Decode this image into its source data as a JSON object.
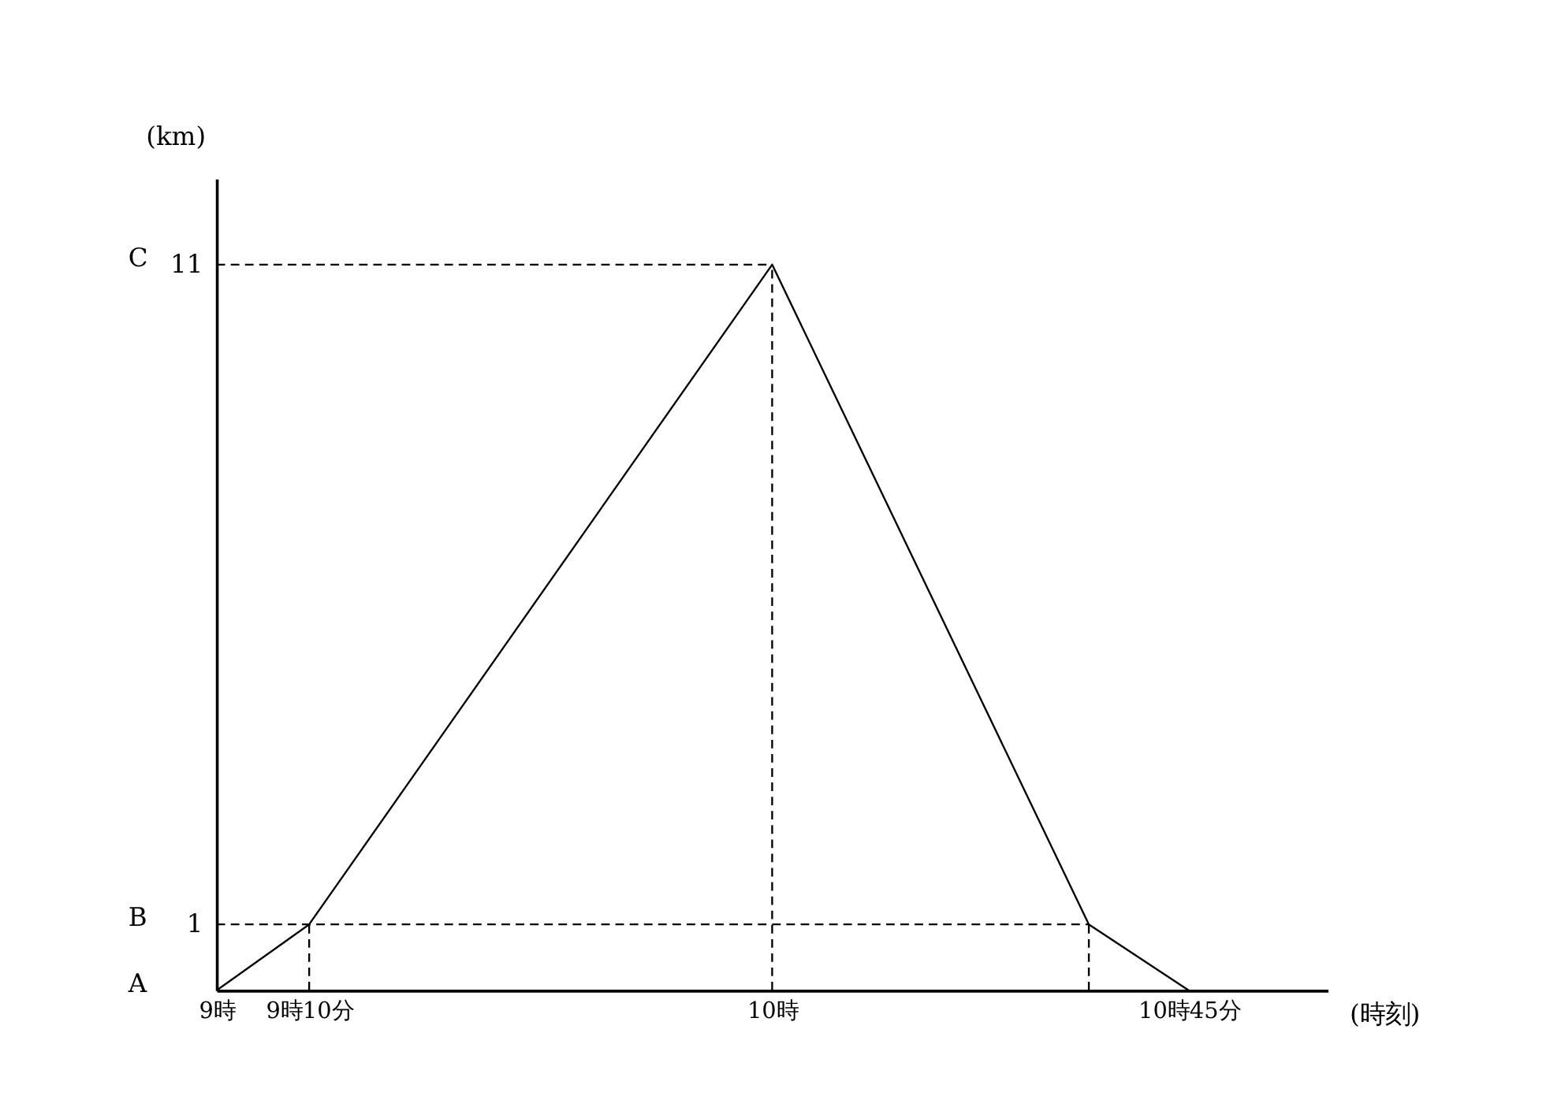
{
  "chart_data": {
    "type": "line",
    "xlabel": "(時刻)",
    "ylabel": "(km)",
    "xlim": [
      9,
      11
    ],
    "xticks": [
      {
        "value": 9,
        "label": "9時"
      },
      {
        "value": 9.1667,
        "label": "9時10分"
      },
      {
        "value": 10,
        "label": "10時"
      },
      {
        "value": 10.75,
        "label": "10時45分"
      }
    ],
    "ylim": [
      0,
      12.3
    ],
    "yticks": [
      1,
      11
    ],
    "annotations": [
      "A",
      "B",
      "C"
    ],
    "grid": false,
    "legend": false,
    "marker": "none",
    "series": [
      {
        "x": [
          9,
          9.1667,
          10,
          10.57,
          10.75
        ],
        "values": [
          0,
          1,
          11,
          1,
          0
        ],
        "color": "#000000",
        "line_style": "solid"
      },
      {
        "x": [
          9,
          10.57
        ],
        "values": [
          1,
          1
        ],
        "color": "#000000",
        "line_style": "dashed"
      },
      {
        "x": [
          9,
          10
        ],
        "values": [
          11,
          11
        ],
        "color": "#000000",
        "line_style": "dashed"
      },
      {
        "x": [
          9.1667,
          9.1667
        ],
        "values": [
          0,
          1
        ],
        "color": "#000000",
        "line_style": "dashed"
      },
      {
        "x": [
          10,
          10
        ],
        "values": [
          0,
          11
        ],
        "color": "#000000",
        "line_style": "dashed"
      },
      {
        "x": [
          10.57,
          10.57
        ],
        "values": [
          0,
          1
        ],
        "color": "#000000",
        "line_style": "dashed"
      }
    ]
  }
}
